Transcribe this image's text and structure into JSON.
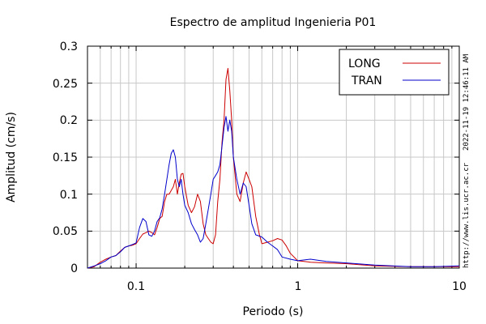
{
  "chart_data": {
    "type": "line",
    "title": "Espectro de amplitud Ingenieria P01",
    "xlabel": "Periodo (s)",
    "ylabel": "Amplitud (cm/s)",
    "x_scale": "log",
    "xlim": [
      0.05,
      10
    ],
    "ylim": [
      0,
      0.3
    ],
    "xticks": [
      0.1,
      1,
      10
    ],
    "xtick_labels": [
      "0.1",
      "1",
      "10"
    ],
    "yticks": [
      0,
      0.05,
      0.1,
      0.15,
      0.2,
      0.25,
      0.3
    ],
    "ytick_labels": [
      "0",
      "0.05",
      "0.1",
      "0.15",
      "0.2",
      "0.25",
      "0.3"
    ],
    "grid": true,
    "legend_position": "top-right",
    "series": [
      {
        "name": "LONG",
        "color": "#cc0000",
        "points": [
          [
            0.05,
            0.0
          ],
          [
            0.055,
            0.002
          ],
          [
            0.06,
            0.008
          ],
          [
            0.065,
            0.012
          ],
          [
            0.07,
            0.015
          ],
          [
            0.075,
            0.017
          ],
          [
            0.08,
            0.023
          ],
          [
            0.085,
            0.028
          ],
          [
            0.09,
            0.03
          ],
          [
            0.095,
            0.031
          ],
          [
            0.1,
            0.033
          ],
          [
            0.105,
            0.04
          ],
          [
            0.11,
            0.046
          ],
          [
            0.115,
            0.048
          ],
          [
            0.12,
            0.05
          ],
          [
            0.125,
            0.048
          ],
          [
            0.13,
            0.045
          ],
          [
            0.135,
            0.055
          ],
          [
            0.14,
            0.067
          ],
          [
            0.145,
            0.07
          ],
          [
            0.15,
            0.09
          ],
          [
            0.155,
            0.1
          ],
          [
            0.16,
            0.1
          ],
          [
            0.165,
            0.105
          ],
          [
            0.17,
            0.11
          ],
          [
            0.175,
            0.12
          ],
          [
            0.18,
            0.1
          ],
          [
            0.185,
            0.115
          ],
          [
            0.19,
            0.127
          ],
          [
            0.195,
            0.128
          ],
          [
            0.2,
            0.11
          ],
          [
            0.21,
            0.085
          ],
          [
            0.22,
            0.075
          ],
          [
            0.23,
            0.083
          ],
          [
            0.24,
            0.1
          ],
          [
            0.25,
            0.09
          ],
          [
            0.26,
            0.06
          ],
          [
            0.27,
            0.045
          ],
          [
            0.28,
            0.04
          ],
          [
            0.29,
            0.035
          ],
          [
            0.3,
            0.033
          ],
          [
            0.31,
            0.045
          ],
          [
            0.32,
            0.09
          ],
          [
            0.33,
            0.12
          ],
          [
            0.34,
            0.17
          ],
          [
            0.35,
            0.2
          ],
          [
            0.36,
            0.255
          ],
          [
            0.37,
            0.27
          ],
          [
            0.38,
            0.24
          ],
          [
            0.39,
            0.2
          ],
          [
            0.4,
            0.15
          ],
          [
            0.42,
            0.1
          ],
          [
            0.44,
            0.09
          ],
          [
            0.46,
            0.115
          ],
          [
            0.48,
            0.13
          ],
          [
            0.5,
            0.12
          ],
          [
            0.52,
            0.11
          ],
          [
            0.55,
            0.07
          ],
          [
            0.58,
            0.045
          ],
          [
            0.6,
            0.033
          ],
          [
            0.65,
            0.035
          ],
          [
            0.7,
            0.037
          ],
          [
            0.75,
            0.04
          ],
          [
            0.8,
            0.038
          ],
          [
            0.85,
            0.03
          ],
          [
            0.9,
            0.02
          ],
          [
            1.0,
            0.01
          ],
          [
            1.2,
            0.008
          ],
          [
            1.5,
            0.007
          ],
          [
            2.0,
            0.006
          ],
          [
            3.0,
            0.003
          ],
          [
            5.0,
            0.002
          ],
          [
            7.0,
            0.002
          ],
          [
            10.0,
            0.002
          ]
        ]
      },
      {
        "name": "TRAN",
        "color": "#0000cc",
        "points": [
          [
            0.05,
            0.0
          ],
          [
            0.055,
            0.003
          ],
          [
            0.06,
            0.006
          ],
          [
            0.065,
            0.01
          ],
          [
            0.07,
            0.015
          ],
          [
            0.075,
            0.017
          ],
          [
            0.08,
            0.022
          ],
          [
            0.085,
            0.028
          ],
          [
            0.09,
            0.03
          ],
          [
            0.095,
            0.032
          ],
          [
            0.1,
            0.034
          ],
          [
            0.105,
            0.055
          ],
          [
            0.11,
            0.067
          ],
          [
            0.115,
            0.063
          ],
          [
            0.12,
            0.045
          ],
          [
            0.125,
            0.043
          ],
          [
            0.13,
            0.05
          ],
          [
            0.135,
            0.063
          ],
          [
            0.14,
            0.068
          ],
          [
            0.145,
            0.08
          ],
          [
            0.15,
            0.1
          ],
          [
            0.155,
            0.12
          ],
          [
            0.16,
            0.14
          ],
          [
            0.165,
            0.155
          ],
          [
            0.17,
            0.16
          ],
          [
            0.175,
            0.15
          ],
          [
            0.18,
            0.12
          ],
          [
            0.185,
            0.11
          ],
          [
            0.19,
            0.12
          ],
          [
            0.195,
            0.1
          ],
          [
            0.2,
            0.085
          ],
          [
            0.21,
            0.075
          ],
          [
            0.22,
            0.06
          ],
          [
            0.23,
            0.052
          ],
          [
            0.24,
            0.045
          ],
          [
            0.25,
            0.035
          ],
          [
            0.26,
            0.04
          ],
          [
            0.27,
            0.06
          ],
          [
            0.28,
            0.08
          ],
          [
            0.29,
            0.1
          ],
          [
            0.3,
            0.12
          ],
          [
            0.31,
            0.125
          ],
          [
            0.32,
            0.13
          ],
          [
            0.33,
            0.14
          ],
          [
            0.34,
            0.165
          ],
          [
            0.35,
            0.19
          ],
          [
            0.36,
            0.205
          ],
          [
            0.37,
            0.185
          ],
          [
            0.38,
            0.2
          ],
          [
            0.39,
            0.185
          ],
          [
            0.4,
            0.15
          ],
          [
            0.42,
            0.12
          ],
          [
            0.44,
            0.1
          ],
          [
            0.46,
            0.115
          ],
          [
            0.48,
            0.11
          ],
          [
            0.5,
            0.085
          ],
          [
            0.52,
            0.06
          ],
          [
            0.55,
            0.045
          ],
          [
            0.6,
            0.042
          ],
          [
            0.65,
            0.035
          ],
          [
            0.7,
            0.03
          ],
          [
            0.75,
            0.025
          ],
          [
            0.8,
            0.015
          ],
          [
            0.9,
            0.012
          ],
          [
            1.0,
            0.01
          ],
          [
            1.2,
            0.012
          ],
          [
            1.5,
            0.009
          ],
          [
            2.0,
            0.007
          ],
          [
            3.0,
            0.004
          ],
          [
            5.0,
            0.002
          ],
          [
            7.0,
            0.002
          ],
          [
            10.0,
            0.003
          ]
        ]
      }
    ]
  },
  "side_text": {
    "url": "http://www.lis.ucr.ac.cr",
    "timestamp": "2022-11-19 12:46:11 AM"
  }
}
